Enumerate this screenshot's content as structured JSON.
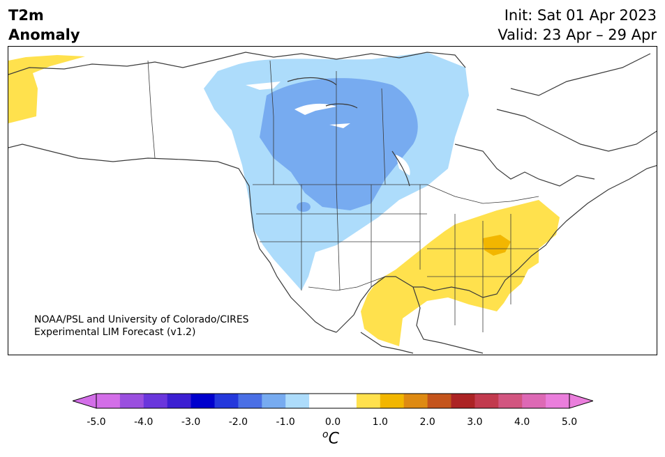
{
  "header": {
    "title_line1": "T2m",
    "title_line2": "Anomaly",
    "init": "Init: Sat 01 Apr 2023",
    "valid": "Valid: 23 Apr – 29 Apr"
  },
  "credit": {
    "line1": "NOAA/PSL and University of Colorado/CIRES",
    "line2": "Experimental LIM Forecast (v1.2)"
  },
  "colorbar": {
    "unit_base": "C",
    "unit_sup": "o",
    "tick_labels": [
      "-5.0",
      "-4.0",
      "-3.0",
      "-2.0",
      "-1.0",
      "0.0",
      "1.0",
      "2.0",
      "3.0",
      "4.0",
      "5.0"
    ],
    "colors": [
      "#d36ee8",
      "#9a4fdf",
      "#6a36dc",
      "#3c1fd2",
      "#0000cd",
      "#2438dc",
      "#4a6fe5",
      "#77abf0",
      "#addcfb",
      "#ffffff",
      "#ffffff",
      "#ffe14d",
      "#f2b600",
      "#de8a12",
      "#c4541b",
      "#ac2324",
      "#c23a4e",
      "#d25580",
      "#dd69b5",
      "#ea7edc"
    ],
    "min_color": "#d36ee8",
    "max_color": "#ea7edc"
  },
  "map": {
    "region": "North America",
    "anomaly_colors": {
      "light_blue": "#addcfb",
      "mid_blue": "#77abf0",
      "yellow": "#ffe14d",
      "orange": "#f2b600"
    }
  }
}
